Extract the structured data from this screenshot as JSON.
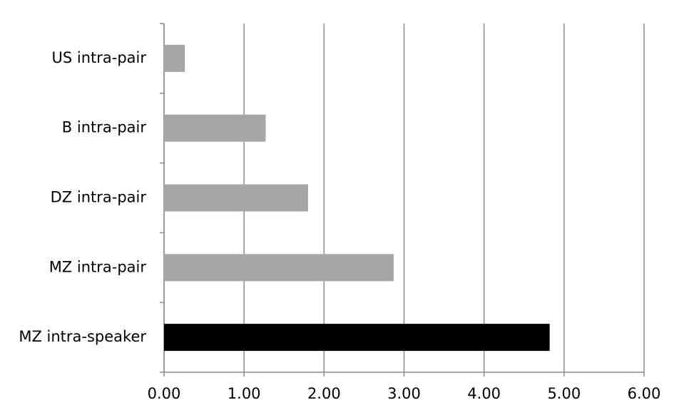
{
  "chart_data": {
    "type": "bar",
    "orientation": "horizontal",
    "categories": [
      "US intra-pair",
      "B intra-pair",
      "DZ intra-pair",
      "MZ intra-pair",
      "MZ intra-speaker"
    ],
    "values": [
      0.26,
      1.27,
      1.8,
      2.87,
      4.82
    ],
    "colors": [
      "#a6a6a6",
      "#a6a6a6",
      "#a6a6a6",
      "#a6a6a6",
      "#000000"
    ],
    "xlim": [
      0,
      6
    ],
    "xticks": [
      {
        "value": 0,
        "label": "0.00"
      },
      {
        "value": 1,
        "label": "1.00"
      },
      {
        "value": 2,
        "label": "2.00"
      },
      {
        "value": 3,
        "label": "3.00"
      },
      {
        "value": 4,
        "label": "4.00"
      },
      {
        "value": 5,
        "label": "5.00"
      },
      {
        "value": 6,
        "label": "6.00"
      }
    ],
    "grid": true
  }
}
